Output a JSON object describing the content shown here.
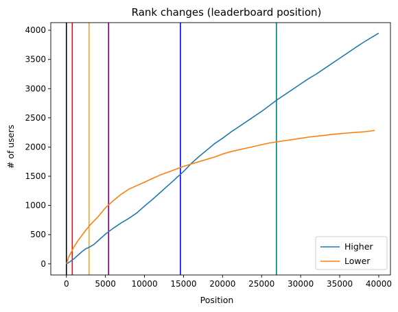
{
  "chart_data": {
    "type": "line",
    "title": "Rank changes (leaderboard position)",
    "xlabel": "Position",
    "ylabel": "# of users",
    "xlim": [
      -2000,
      41500
    ],
    "ylim": [
      -190,
      4130
    ],
    "xticks": [
      0,
      5000,
      10000,
      15000,
      20000,
      25000,
      30000,
      35000,
      40000
    ],
    "yticks": [
      0,
      500,
      1000,
      1500,
      2000,
      2500,
      3000,
      3500,
      4000
    ],
    "grid": false,
    "legend_position": "bottom-right",
    "series": [
      {
        "name": "Higher",
        "color": "#1f77b4",
        "x": [
          0,
          500,
          1000,
          1500,
          2000,
          2500,
          3000,
          3500,
          4000,
          5000,
          6000,
          7000,
          8000,
          9000,
          10000,
          11000,
          12000,
          13000,
          14000,
          15000,
          16000,
          17000,
          18000,
          19000,
          20000,
          21000,
          22000,
          23000,
          24000,
          25000,
          26000,
          27000,
          28000,
          29000,
          30000,
          31000,
          32000,
          33000,
          34000,
          35000,
          36000,
          37000,
          38000,
          39000,
          40000
        ],
        "y": [
          0,
          40,
          90,
          150,
          210,
          260,
          290,
          330,
          390,
          510,
          610,
          700,
          780,
          870,
          990,
          1100,
          1220,
          1340,
          1460,
          1580,
          1720,
          1840,
          1950,
          2060,
          2150,
          2250,
          2340,
          2430,
          2520,
          2610,
          2710,
          2810,
          2900,
          2990,
          3080,
          3170,
          3250,
          3340,
          3430,
          3520,
          3610,
          3700,
          3790,
          3870,
          3950
        ]
      },
      {
        "name": "Lower",
        "color": "#ff7f0e",
        "x": [
          0,
          300,
          700,
          1000,
          1500,
          2000,
          2500,
          3000,
          4000,
          5000,
          6000,
          7000,
          8000,
          9000,
          10000,
          11000,
          12000,
          13000,
          14000,
          15000,
          16000,
          17000,
          18000,
          19000,
          20000,
          21000,
          22000,
          23000,
          24000,
          25000,
          26000,
          27000,
          28000,
          29000,
          30000,
          31000,
          32000,
          33000,
          34000,
          35000,
          36000,
          37000,
          38000,
          39000,
          39500
        ],
        "y": [
          0,
          120,
          220,
          300,
          400,
          490,
          580,
          660,
          800,
          960,
          1080,
          1190,
          1280,
          1340,
          1400,
          1460,
          1520,
          1570,
          1620,
          1670,
          1710,
          1750,
          1790,
          1830,
          1880,
          1920,
          1950,
          1980,
          2010,
          2040,
          2070,
          2090,
          2110,
          2130,
          2150,
          2170,
          2185,
          2200,
          2215,
          2230,
          2240,
          2250,
          2260,
          2275,
          2285
        ]
      }
    ],
    "vertical_lines": [
      {
        "x": 0,
        "color": "#000000"
      },
      {
        "x": 750,
        "color": "#ff0000"
      },
      {
        "x": 2900,
        "color": "#ffa500"
      },
      {
        "x": 5400,
        "color": "#800080"
      },
      {
        "x": 14600,
        "color": "#0000ff"
      },
      {
        "x": 26900,
        "color": "#008080"
      }
    ]
  }
}
